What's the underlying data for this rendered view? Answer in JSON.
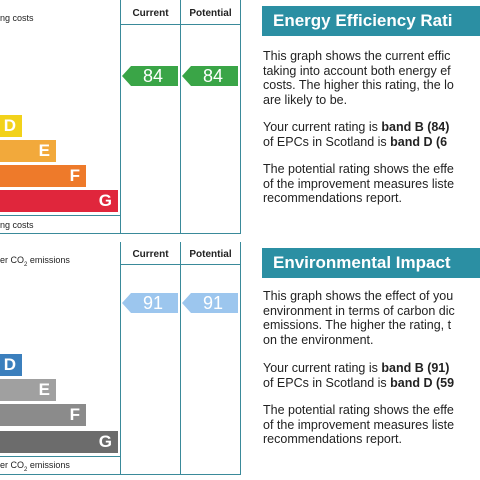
{
  "energy_chart": {
    "top_caption": "ng costs",
    "bottom_caption": "ng costs",
    "current_header": "Current",
    "potential_header": "Potential",
    "current_value": "84",
    "potential_value": "84",
    "bands": [
      {
        "letter": "D",
        "color": "#f2d21a"
      },
      {
        "letter": "E",
        "color": "#f2a93b"
      },
      {
        "letter": "F",
        "color": "#ee7a2a"
      },
      {
        "letter": "G",
        "color": "#e0263c"
      }
    ],
    "arrow_color": "#3aa547"
  },
  "env_chart": {
    "top_caption_prefix": "er CO",
    "top_caption_sub": "2",
    "top_caption_suffix": " emissions",
    "bottom_caption_prefix": "er CO",
    "bottom_caption_sub": "2",
    "bottom_caption_suffix": " emissions",
    "current_header": "Current",
    "potential_header": "Potential",
    "current_value": "91",
    "potential_value": "91",
    "bands": [
      {
        "letter": "D",
        "color": "#3b7fbd"
      },
      {
        "letter": "E",
        "color": "#a0a0a0"
      },
      {
        "letter": "F",
        "color": "#8b8b8b"
      },
      {
        "letter": "G",
        "color": "#6c6c6c"
      }
    ],
    "arrow_color": "#9cc6ee"
  },
  "energy_panel": {
    "title": "Energy Efficiency Rati",
    "p1": [
      "This graph shows the current effic",
      "taking into account both energy ef",
      "costs. The higher this rating, the lo",
      "are likely to be."
    ],
    "p2_l1_a": "Your current rating is ",
    "p2_l1_b": "band B (84)",
    "p2_l2_a": "of EPCs in Scotland is ",
    "p2_l2_b": "band D (6",
    "p3": [
      "The potential rating shows the effe",
      "of the improvement measures liste",
      "recommendations report."
    ]
  },
  "env_panel": {
    "title": "Environmental Impact",
    "p1": [
      "This graph shows the effect of you",
      "environment in terms of carbon dic",
      "emissions. The higher the rating, t",
      "on the environment."
    ],
    "p2_l1_a": "Your current rating is ",
    "p2_l1_b": "band B (91)",
    "p2_l2_a": "of EPCs in Scotland is ",
    "p2_l2_b": "band D (59",
    "p3": [
      "The potential rating shows the effe",
      "of the improvement measures liste",
      "recommendations report."
    ]
  }
}
